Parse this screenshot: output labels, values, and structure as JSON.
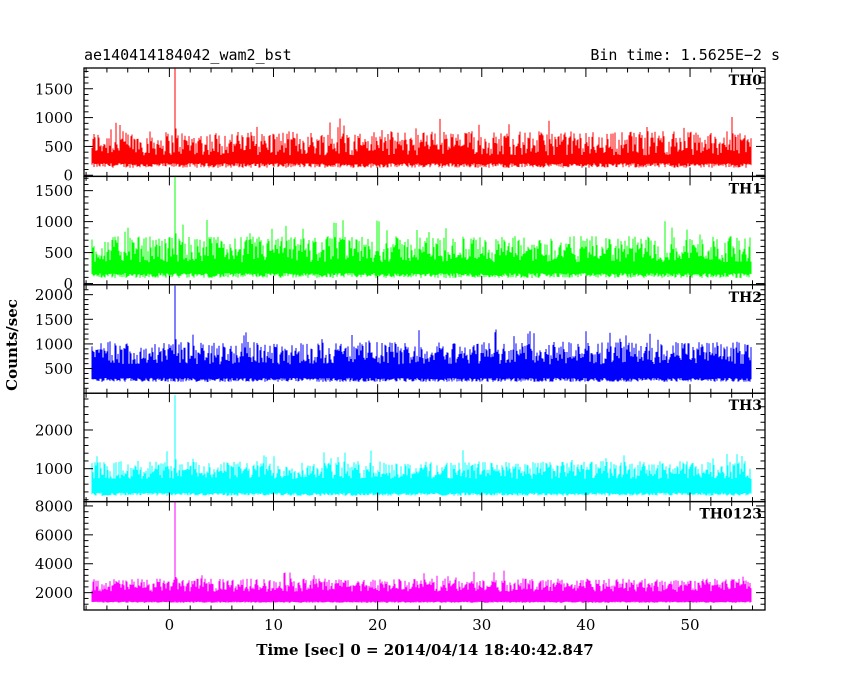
{
  "title_left": "ae140414184042_wam2_bst",
  "title_right": "Bin time: 1.5625E−2 s",
  "ylabel": "Counts/sec",
  "xlabel": "Time [sec] 0 = 2014/04/14 18:40:42.847",
  "chart_data": {
    "type": "line",
    "x_range": [
      -8.2,
      57.2
    ],
    "x_ticks": [
      0,
      10,
      20,
      30,
      40,
      50
    ],
    "x_tick_labels": [
      "0",
      "10",
      "20",
      "30",
      "40",
      "50"
    ],
    "data_x_range": [
      -7.4,
      55.9
    ],
    "bin_time_s": 0.015625,
    "panels": [
      {
        "name": "TH0",
        "color": "#ff0000",
        "ylim": [
          -20,
          1860
        ],
        "y_ticks": [
          0,
          500,
          1000,
          1500
        ],
        "y_tick_labels": [
          "0",
          "500",
          "1000",
          "1500"
        ],
        "baseline": 130,
        "typical_level": 450,
        "noise": 300,
        "burst": {
          "t": 0.5,
          "peak": 1850
        }
      },
      {
        "name": "TH1",
        "color": "#00ff00",
        "ylim": [
          -20,
          1730
        ],
        "y_ticks": [
          0,
          500,
          1000,
          1500
        ],
        "y_tick_labels": [
          "0",
          "500",
          "1000",
          "1500"
        ],
        "baseline": 90,
        "typical_level": 450,
        "noise": 300,
        "burst": {
          "t": 0.5,
          "peak": 1720
        }
      },
      {
        "name": "TH2",
        "color": "#0000ff",
        "ylim": [
          0,
          2200
        ],
        "y_ticks": [
          500,
          1000,
          1500,
          2000
        ],
        "y_tick_labels": [
          "500",
          "1000",
          "1500",
          "2000"
        ],
        "baseline": 230,
        "typical_level": 700,
        "noise": 330,
        "burst": {
          "t": 0.5,
          "peak": 2180
        }
      },
      {
        "name": "TH3",
        "color": "#00ffff",
        "ylim": [
          150,
          2950
        ],
        "y_ticks": [
          1000,
          2000
        ],
        "y_tick_labels": [
          "1000",
          "2000"
        ],
        "baseline": 300,
        "typical_level": 850,
        "noise": 330,
        "burst": {
          "t": 0.5,
          "peak": 2900
        }
      },
      {
        "name": "TH0123",
        "color": "#ff00ff",
        "ylim": [
          800,
          8300
        ],
        "y_ticks": [
          2000,
          4000,
          6000,
          8000
        ],
        "y_tick_labels": [
          "2000",
          "4000",
          "6000",
          "8000"
        ],
        "baseline": 1300,
        "typical_level": 2300,
        "noise": 650,
        "burst": {
          "t": 0.5,
          "peak": 8300
        }
      }
    ]
  }
}
